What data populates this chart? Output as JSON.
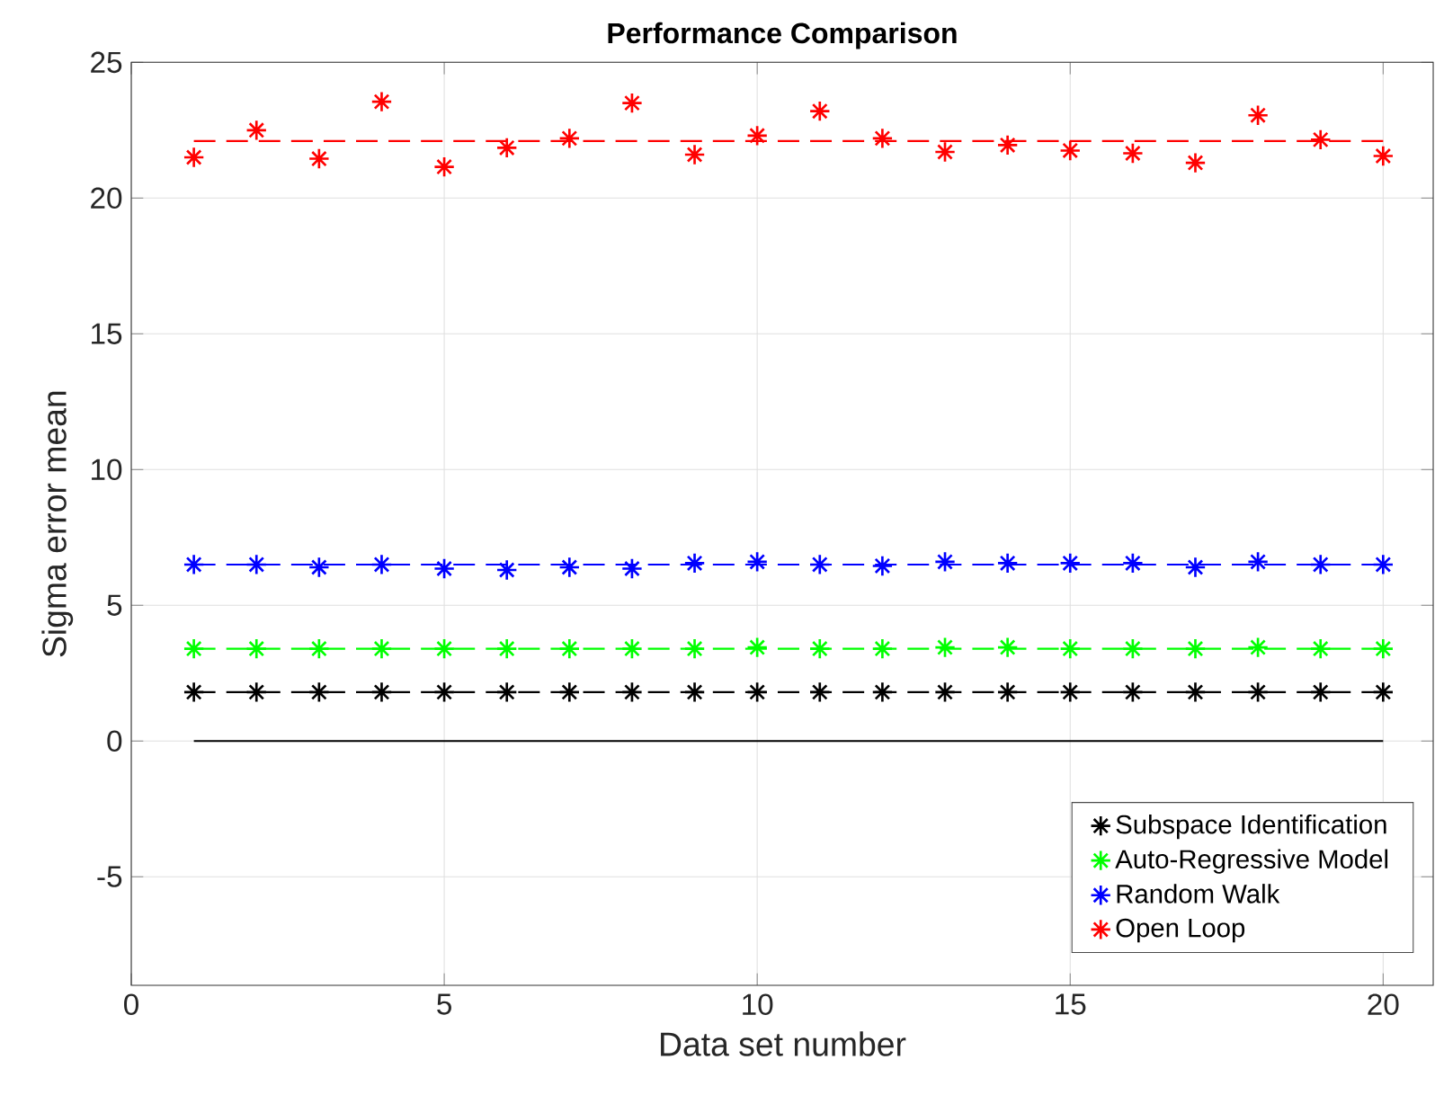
{
  "chart_data": {
    "type": "scatter",
    "title": "Performance Comparison",
    "xlabel": "Data set number",
    "ylabel": "Sigma error mean",
    "x": [
      1,
      2,
      3,
      4,
      5,
      6,
      7,
      8,
      9,
      10,
      11,
      12,
      13,
      14,
      15,
      16,
      17,
      18,
      19,
      20
    ],
    "xlim": [
      0,
      20.8
    ],
    "xticks": [
      0,
      5,
      10,
      15,
      20
    ],
    "ylim": [
      -9,
      25
    ],
    "yticks": [
      -5,
      0,
      5,
      10,
      15,
      20,
      25
    ],
    "grid": true,
    "legend": "bottom right",
    "marker": "cross",
    "series": [
      {
        "name": "Subspace Identification",
        "color": "#000000",
        "values": [
          1.8,
          1.8,
          1.8,
          1.8,
          1.8,
          1.8,
          1.8,
          1.8,
          1.8,
          1.8,
          1.8,
          1.8,
          1.8,
          1.8,
          1.8,
          1.8,
          1.8,
          1.8,
          1.8,
          1.8
        ]
      },
      {
        "name": "Auto-Regressive Model",
        "color": "#00ff00",
        "values": [
          3.4,
          3.4,
          3.4,
          3.4,
          3.4,
          3.4,
          3.4,
          3.4,
          3.4,
          3.45,
          3.4,
          3.4,
          3.45,
          3.45,
          3.4,
          3.4,
          3.4,
          3.45,
          3.4,
          3.4
        ]
      },
      {
        "name": "Random Walk",
        "color": "#0000ff",
        "values": [
          6.5,
          6.5,
          6.4,
          6.5,
          6.35,
          6.3,
          6.4,
          6.35,
          6.55,
          6.6,
          6.5,
          6.45,
          6.6,
          6.55,
          6.55,
          6.55,
          6.4,
          6.6,
          6.5,
          6.5
        ]
      },
      {
        "name": "Open Loop",
        "color": "#ff0000",
        "values": [
          21.5,
          22.5,
          21.45,
          23.55,
          21.15,
          21.85,
          22.2,
          23.5,
          21.6,
          22.3,
          23.2,
          22.2,
          21.7,
          21.95,
          21.75,
          21.65,
          21.3,
          23.05,
          22.15,
          21.55
        ]
      }
    ],
    "ref_lines": [
      {
        "axis": "y",
        "value": 1.8,
        "color": "#000000",
        "line_style": "dashed"
      },
      {
        "axis": "y",
        "value": 3.4,
        "color": "#00ff00",
        "line_style": "dashed"
      },
      {
        "axis": "y",
        "value": 6.5,
        "color": "#0000ff",
        "line_style": "dashed"
      },
      {
        "axis": "y",
        "value": 22.1,
        "color": "#ff0000",
        "line_style": "dashed"
      },
      {
        "axis": "y",
        "value": 0,
        "color": "#000000",
        "line_style": "solid"
      }
    ]
  }
}
